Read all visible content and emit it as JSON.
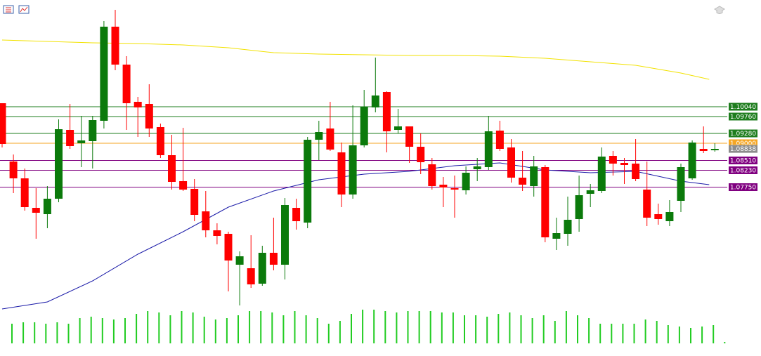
{
  "chart_data": {
    "type": "candlestick",
    "ylim": [
      1.0428,
      1.1308
    ],
    "up_color": "#0b7a0b",
    "down_color": "#ff0000",
    "open": [
      1.1014,
      1.0848,
      1.08,
      1.0716,
      1.0698,
      1.0742,
      1.0938,
      1.09,
      1.0906,
      1.0964,
      1.1232,
      1.1124,
      1.1018,
      1.1012,
      1.0946,
      1.0866,
      1.0792,
      1.077,
      1.0706,
      1.0652,
      1.0642,
      1.0554,
      1.0544,
      1.05,
      1.0588,
      1.0554,
      1.0716,
      1.0674,
      1.091,
      1.0942,
      1.0874,
      1.0754,
      1.0894,
      1.1002,
      1.1046,
      1.0938,
      1.0948,
      1.089,
      1.084,
      1.0782,
      1.0772,
      1.0766,
      1.0826,
      1.0832,
      1.0936,
      1.0888,
      1.0802,
      1.0778,
      1.0832,
      1.0628,
      1.0642,
      1.0684,
      1.0756,
      1.0764,
      1.0864,
      1.0844,
      1.0842,
      1.0768,
      1.0698,
      1.0678,
      1.0736,
      1.08,
      1.0884,
      1.088
    ],
    "high": [
      1.1014,
      1.0868,
      1.0828,
      1.0772,
      1.0778,
      1.0968,
      1.1012,
      1.0978,
      1.0978,
      1.1248,
      1.128,
      1.1148,
      1.1032,
      1.1068,
      1.0956,
      1.0924,
      1.0944,
      1.0798,
      1.0764,
      1.0672,
      1.0648,
      1.0592,
      1.0638,
      1.0608,
      1.0688,
      1.0744,
      1.0742,
      1.0918,
      1.0964,
      1.1018,
      1.0902,
      1.1008,
      1.1052,
      1.1144,
      1.1048,
      1.0998,
      1.0948,
      1.0928,
      1.0858,
      1.0804,
      1.0808,
      1.0834,
      1.0858,
      1.0978,
      1.0964,
      1.0912,
      1.0878,
      1.0864,
      1.0838,
      1.0688,
      1.0748,
      1.0808,
      1.0784,
      1.0888,
      1.0878,
      1.0858,
      1.0912,
      1.0848,
      1.0728,
      1.0738,
      1.0842,
      1.0908,
      1.0948,
      1.09
    ],
    "low": [
      1.0888,
      1.0758,
      1.0708,
      1.0628,
      1.0658,
      1.0732,
      1.0884,
      1.0832,
      1.0828,
      1.0942,
      1.1108,
      1.0938,
      1.0918,
      1.0918,
      1.0858,
      1.0768,
      1.0764,
      1.0678,
      1.0632,
      1.0612,
      1.0478,
      1.0438,
      1.0488,
      1.0494,
      1.0538,
      1.0512,
      1.0654,
      1.0658,
      1.0852,
      1.0878,
      1.0718,
      1.0742,
      1.0888,
      1.0988,
      1.0874,
      1.0928,
      1.0844,
      1.0812,
      1.0768,
      1.0718,
      1.0688,
      1.0754,
      1.0792,
      1.0824,
      1.0878,
      1.0788,
      1.0764,
      1.0748,
      1.0618,
      1.0596,
      1.0608,
      1.0648,
      1.0718,
      1.0758,
      1.0808,
      1.0784,
      1.0792,
      1.0664,
      1.0668,
      1.0664,
      1.0704,
      1.0796,
      1.0872,
      1.0876
    ],
    "close": [
      1.0898,
      1.08,
      1.0718,
      1.0702,
      1.0742,
      1.094,
      1.0892,
      1.0908,
      1.0966,
      1.1232,
      1.1124,
      1.1014,
      1.1002,
      1.0942,
      1.0866,
      1.079,
      1.0768,
      1.0696,
      1.0652,
      1.0636,
      1.0566,
      1.0578,
      1.0498,
      1.0588,
      1.0554,
      1.0724,
      1.0678,
      1.091,
      1.0932,
      1.0882,
      1.0754,
      1.0894,
      1.1004,
      1.1036,
      1.0934,
      1.0948,
      1.089,
      1.0846,
      1.0778,
      1.0774,
      1.0768,
      1.0816,
      1.0834,
      1.0934,
      1.0884,
      1.0802,
      1.0782,
      1.0834,
      1.0632,
      1.0644,
      1.0682,
      1.0752,
      1.0766,
      1.0862,
      1.0842,
      1.0838,
      1.0798,
      1.0688,
      1.0684,
      1.0704,
      1.0832,
      1.0902,
      1.0878,
      1.0884
    ],
    "volume_color": "#22cc22",
    "vlim": [
      0,
      50
    ],
    "volume": [
      28,
      30,
      30,
      28,
      30,
      28,
      36,
      38,
      36,
      34,
      36,
      42,
      46,
      44,
      40,
      46,
      44,
      38,
      34,
      36,
      40,
      46,
      46,
      44,
      40,
      46,
      40,
      36,
      28,
      32,
      42,
      48,
      48,
      46,
      44,
      46,
      46,
      46,
      44,
      44,
      40,
      40,
      38,
      42,
      44,
      40,
      36,
      40,
      32,
      46,
      40,
      36,
      28,
      28,
      28,
      28,
      34,
      32,
      26,
      24,
      22,
      24,
      26,
      2
    ],
    "series": [
      {
        "color": "#f2e200",
        "x": [
          0,
          4,
          8,
          12,
          16,
          20,
          24,
          28,
          32,
          36,
          40,
          44,
          48,
          52,
          56,
          60,
          62.5
        ],
        "values": [
          1.1194,
          1.119,
          1.1186,
          1.1184,
          1.118,
          1.1172,
          1.1158,
          1.1154,
          1.1152,
          1.115,
          1.115,
          1.1148,
          1.1142,
          1.1132,
          1.1122,
          1.11,
          1.1082
        ]
      },
      {
        "color": "#1a1aa8",
        "x": [
          0,
          4,
          8,
          12,
          16,
          20,
          24,
          28,
          32,
          36,
          40,
          44,
          48,
          52,
          56,
          60,
          62.5
        ],
        "values": [
          1.0428,
          1.0448,
          1.0508,
          1.0584,
          1.0648,
          1.0718,
          1.0764,
          1.0796,
          1.0812,
          1.082,
          1.0836,
          1.0844,
          1.0824,
          1.0816,
          1.082,
          1.0792,
          1.0782
        ]
      }
    ],
    "levels": [
      {
        "value": 1.1004,
        "label": "1.10040",
        "color": "#1e7d1e",
        "line": true
      },
      {
        "value": 1.0976,
        "label": "1.09760",
        "color": "#1e7d1e",
        "line": true
      },
      {
        "value": 1.0928,
        "label": "1.09280",
        "color": "#1e7d1e",
        "line": true
      },
      {
        "value": 1.09,
        "label": "1.09000",
        "color": "#f5a623",
        "line": true
      },
      {
        "value": 1.08838,
        "label": "1.08838",
        "color": "#8c8c8c",
        "line": false
      },
      {
        "value": 1.0851,
        "label": "1.08510",
        "color": "#800080",
        "line": true
      },
      {
        "value": 1.0823,
        "label": "1.08230",
        "color": "#800080",
        "line": true
      },
      {
        "value": 1.0775,
        "label": "1.07750",
        "color": "#800080",
        "line": true
      }
    ]
  }
}
